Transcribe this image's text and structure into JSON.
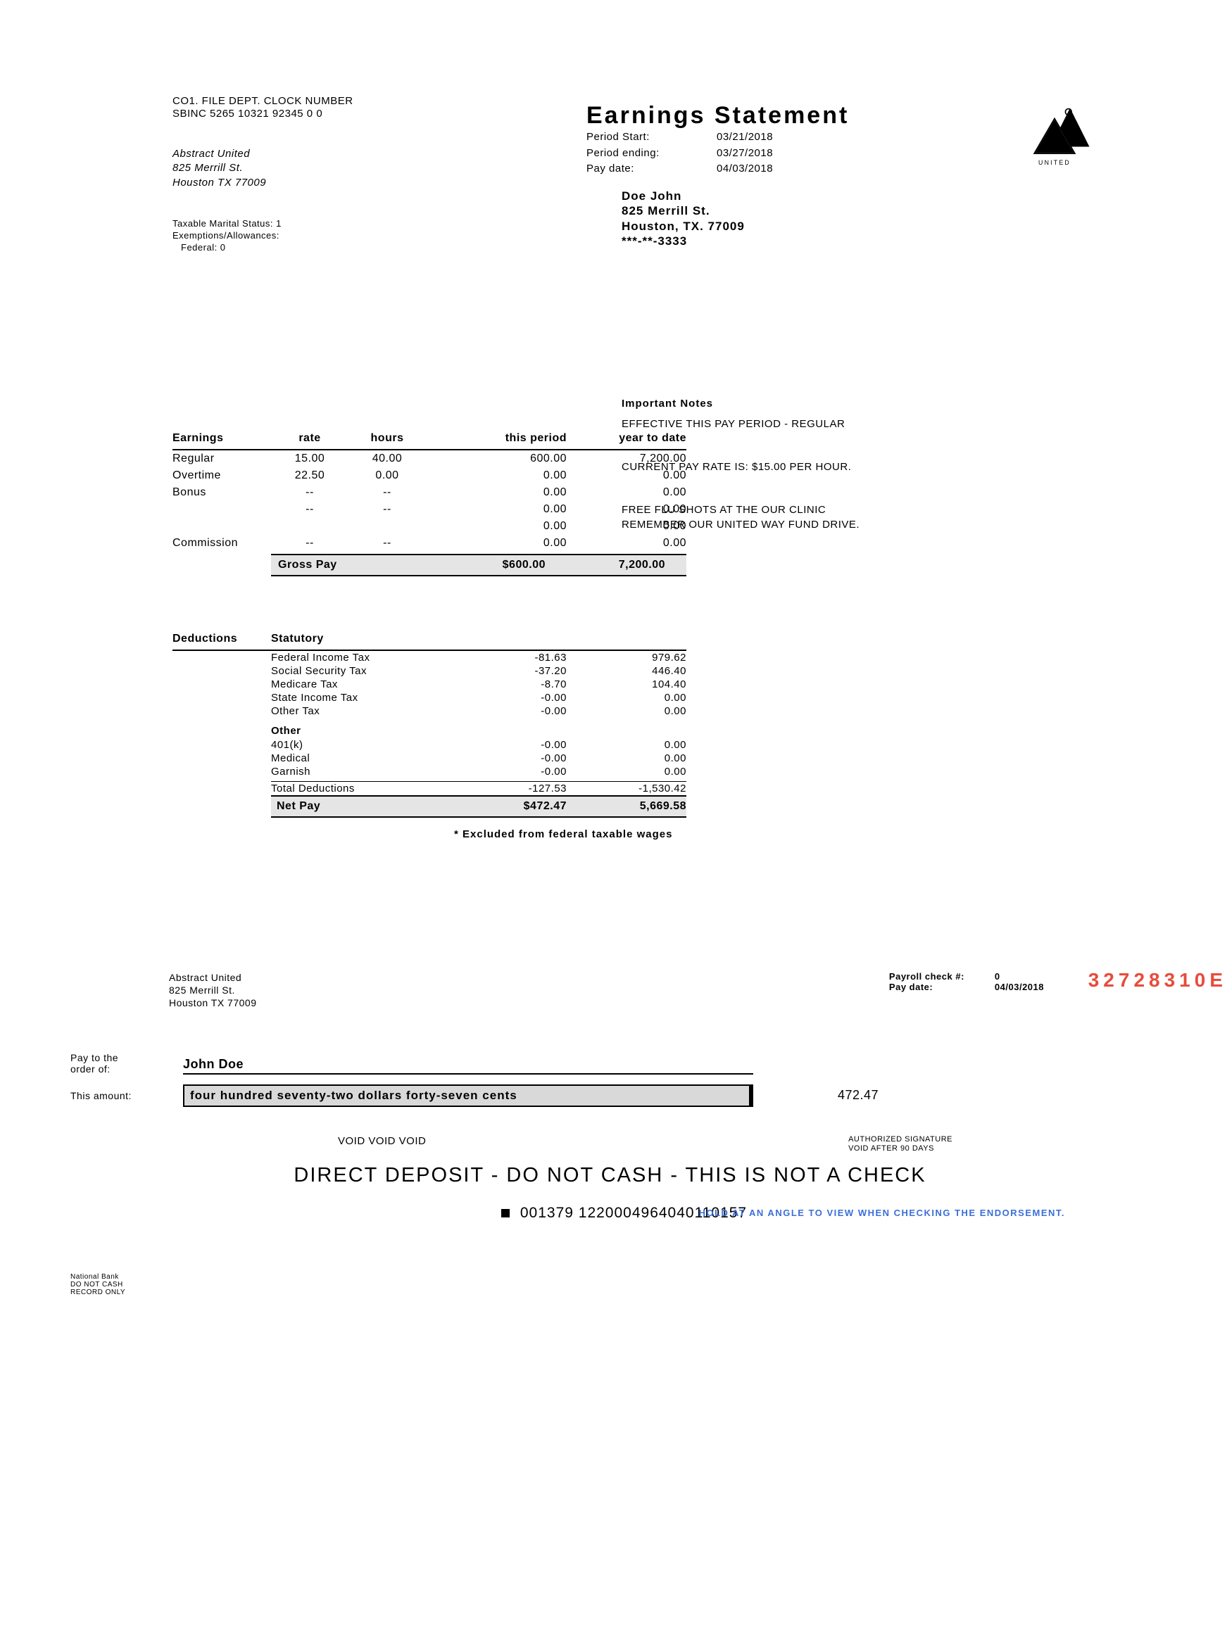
{
  "header_codes": {
    "labels": "CO1.   FILE     DEPT.  CLOCK  NUMBER",
    "values": "SBINC  5265 10321 92345      0 0"
  },
  "employer": {
    "name": "Abstract United",
    "street": "825 Merrill St.",
    "citystate": "Houston TX 77009"
  },
  "tax_status": {
    "l1": "Taxable Marital Status: 1",
    "l2": "Exemptions/Allowances:",
    "l3": "Federal: 0"
  },
  "statement": {
    "title": "Earnings Statement",
    "rows": [
      {
        "label": "Period Start:",
        "value": "03/21/2018"
      },
      {
        "label": "Period ending:",
        "value": "03/27/2018"
      },
      {
        "label": "Pay date:",
        "value": "04/03/2018"
      }
    ]
  },
  "payee": {
    "name": "Doe John",
    "street": "825 Merrill St.",
    "city": "Houston,   TX.   77009",
    "ssn": "***-**-3333"
  },
  "earnings": {
    "headers": [
      "Earnings",
      "rate",
      "hours",
      "this period",
      "year to date"
    ],
    "rows": [
      {
        "c1": "Regular",
        "c2": "15.00",
        "c3": "40.00",
        "c4": "600.00",
        "c5": "7,200.00"
      },
      {
        "c1": "Overtime",
        "c2": "22.50",
        "c3": "0.00",
        "c4": "0.00",
        "c5": "0.00"
      },
      {
        "c1": "Bonus",
        "c2": "--",
        "c3": "--",
        "c4": "0.00",
        "c5": "0.00"
      },
      {
        "c1": "",
        "c2": "--",
        "c3": "--",
        "c4": "0.00",
        "c5": "0.00"
      },
      {
        "c1": "",
        "c2": "",
        "c3": "",
        "c4": "0.00",
        "c5": "0.00"
      },
      {
        "c1": "Commission",
        "c2": "--",
        "c3": "--",
        "c4": "0.00",
        "c5": "0.00"
      }
    ],
    "gross": {
      "label": "Gross Pay",
      "this": "$600.00",
      "ytd": "7,200.00"
    }
  },
  "deductions": {
    "title": "Deductions",
    "sub1": "Statutory",
    "statutory": [
      {
        "name": "Federal Income Tax",
        "this": "-81.63",
        "ytd": "979.62"
      },
      {
        "name": "Social Security Tax",
        "this": "-37.20",
        "ytd": "446.40"
      },
      {
        "name": "Medicare Tax",
        "this": "-8.70",
        "ytd": "104.40"
      },
      {
        "name": "State Income Tax",
        "this": "-0.00",
        "ytd": "0.00"
      },
      {
        "name": "Other Tax",
        "this": "-0.00",
        "ytd": "0.00"
      }
    ],
    "sub2": "Other",
    "other": [
      {
        "name": "401(k)",
        "this": "-0.00",
        "ytd": "0.00"
      },
      {
        "name": "Medical",
        "this": "-0.00",
        "ytd": "0.00"
      },
      {
        "name": "Garnish",
        "this": "-0.00",
        "ytd": "0.00"
      },
      {
        "name": "Total Deductions",
        "this": "-127.53",
        "ytd": "-1,530.42"
      }
    ],
    "net": {
      "label": "Net Pay",
      "this": "$472.47",
      "ytd": "5,669.58"
    },
    "footnote": "* Excluded from federal taxable wages"
  },
  "notes": {
    "title": "Important Notes",
    "p1": "EFFECTIVE THIS PAY PERIOD - REGULAR",
    "p2": "CURRENT PAY RATE IS: $15.00 PER HOUR.",
    "p3a": "FREE FLU SHOTS AT THE OUR CLINIC",
    "p3b": "REMEMBER OUR UNITED WAY FUND DRIVE."
  },
  "check": {
    "employer_name": "Abstract United",
    "employer_street": "825 Merrill St.",
    "employer_city": "Houston TX 77009",
    "meta1_label": "Payroll check #:",
    "meta1_val": "0",
    "meta2_label": "Pay date:",
    "meta2_val": "04/03/2018",
    "rednum": "32728310E",
    "pay_label": "Pay to the\norder of:",
    "payee": "John Doe",
    "amount_label": "This amount:",
    "amount_words": "four hundred seventy-two dollars forty-seven cents",
    "amount_num": "472.47",
    "void": "VOID VOID VOID",
    "sign1": "AUTHORIZED SIGNATURE",
    "sign2": "VOID AFTER 90 DAYS",
    "notcheck": "DIRECT DEPOSIT - DO NOT CASH - THIS IS NOT A CHECK",
    "bank1": "National Bank",
    "bank2": "DO NOT CASH",
    "bank3": "RECORD ONLY",
    "micr": "001379 1220004964040110157",
    "hold": "HOLD AT AN ANGLE TO VIEW WHEN CHECKING THE ENDORSEMENT."
  }
}
